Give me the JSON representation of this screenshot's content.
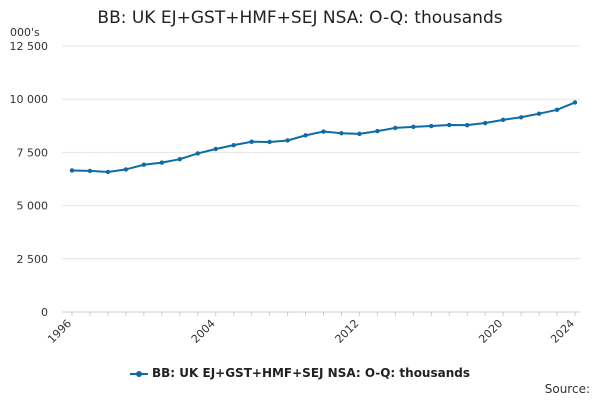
{
  "chart_data": {
    "type": "line",
    "title": "BB: UK EJ+GST+HMF+SEJ NSA: O-Q: thousands",
    "unit_label": "000's",
    "x": [
      "1996",
      "1997",
      "1998",
      "1999",
      "2000",
      "2001",
      "2002",
      "2003",
      "2004",
      "2005",
      "2006",
      "2007",
      "2008",
      "2009",
      "2010",
      "2011",
      "2012",
      "2013",
      "2014",
      "2015",
      "2016",
      "2017",
      "2018",
      "2019",
      "2020",
      "2021",
      "2022",
      "2023",
      "2024"
    ],
    "x_tick_labels": [
      "1996",
      "2004",
      "2012",
      "2020",
      "2024"
    ],
    "series": [
      {
        "name": "BB: UK EJ+GST+HMF+SEJ NSA: O-Q: thousands",
        "color": "#0e6ba8",
        "values": [
          6650,
          6630,
          6580,
          6700,
          6920,
          7020,
          7180,
          7450,
          7660,
          7840,
          8000,
          7990,
          8060,
          8300,
          8480,
          8400,
          8370,
          8500,
          8650,
          8700,
          8740,
          8790,
          8780,
          8880,
          9030,
          9150,
          9320,
          9500,
          9850
        ]
      }
    ],
    "y_ticks": [
      0,
      2500,
      5000,
      7500,
      10000,
      12500
    ],
    "y_tick_labels": [
      "0",
      "2 500",
      "5 000",
      "7 500",
      "10 000",
      "12 500"
    ],
    "ylim": [
      0,
      12500
    ],
    "grid": true,
    "legend_placement": "bottom"
  },
  "source_label": "Source:"
}
